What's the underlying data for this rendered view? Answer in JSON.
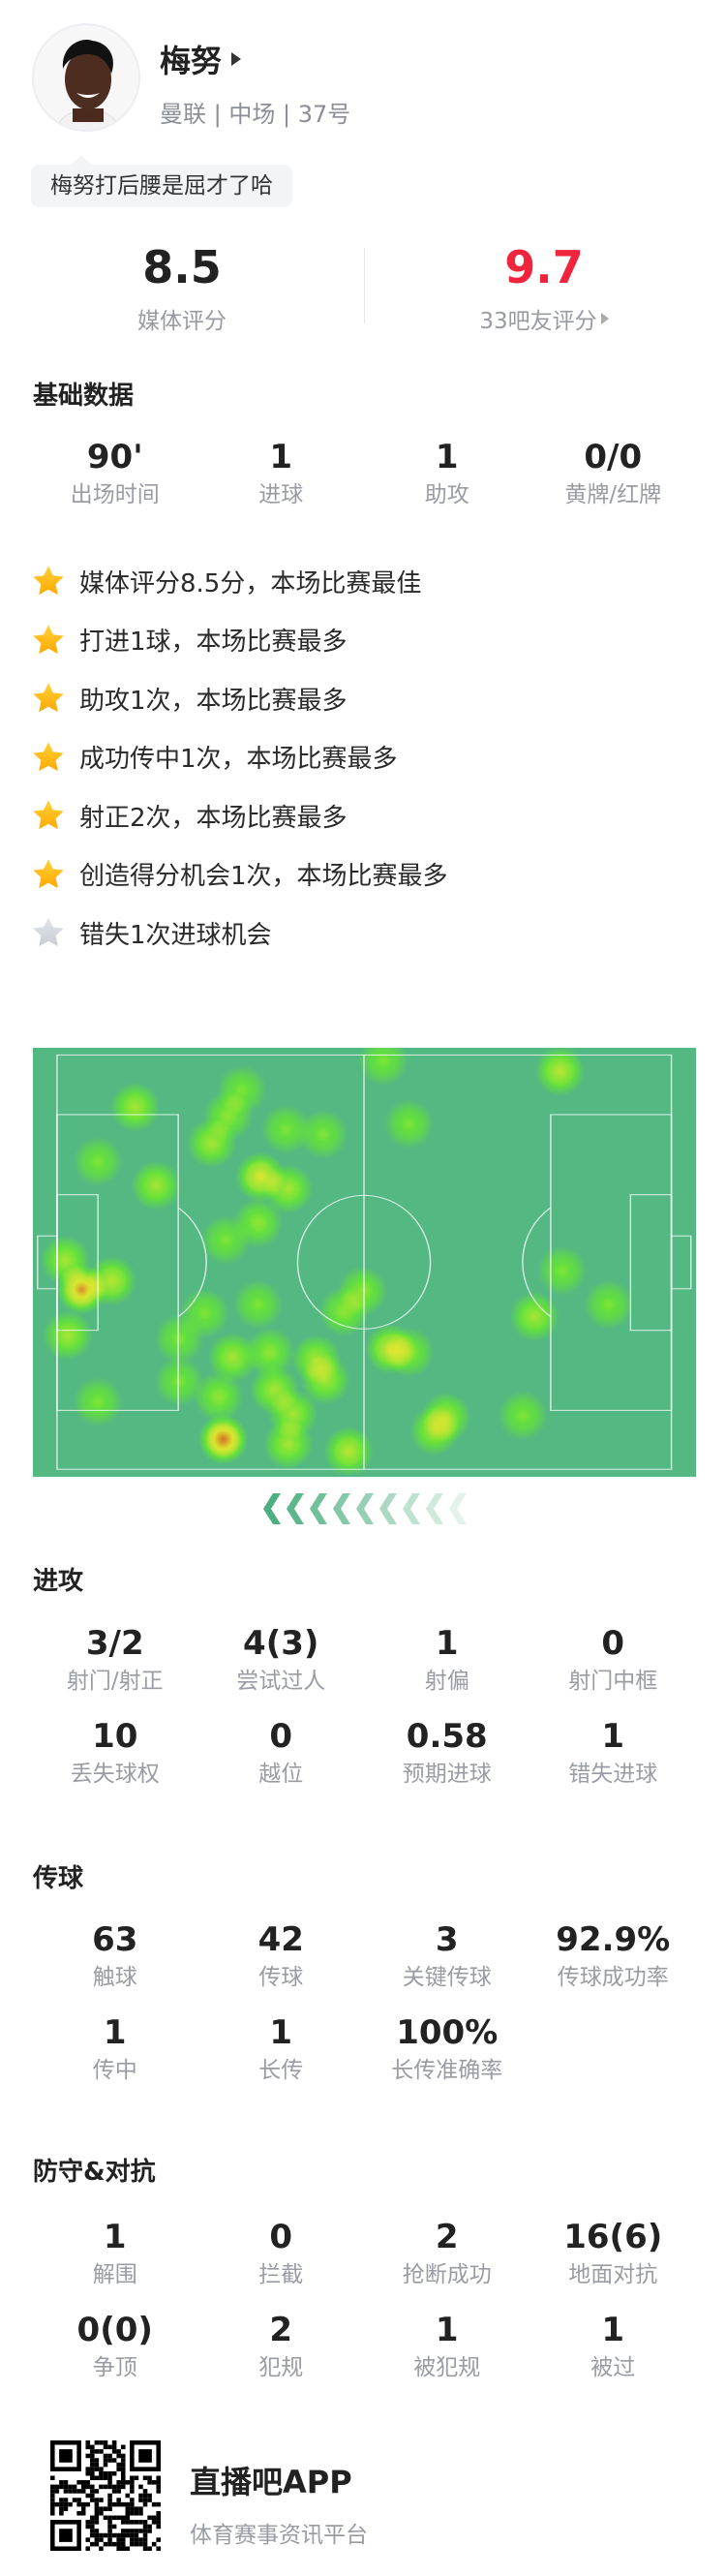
{
  "player": {
    "name": "梅努",
    "team": "曼联",
    "position": "中场",
    "number": "37号",
    "comment": "梅努打后腰是屈才了哈"
  },
  "ratings": {
    "media": {
      "value": "8.5",
      "label": "媒体评分"
    },
    "fans": {
      "value": "9.7",
      "label": "33吧友评分",
      "color": "#f0243c"
    }
  },
  "basic": {
    "title": "基础数据",
    "items": [
      {
        "v": "90'",
        "l": "出场时间"
      },
      {
        "v": "1",
        "l": "进球"
      },
      {
        "v": "1",
        "l": "助攻"
      },
      {
        "v": "0/0",
        "l": "黄牌/红牌"
      }
    ]
  },
  "highlights": [
    {
      "text": "媒体评分8.5分，本场比赛最佳",
      "star": "gold"
    },
    {
      "text": "打进1球，本场比赛最多",
      "star": "gold"
    },
    {
      "text": "助攻1次，本场比赛最多",
      "star": "gold"
    },
    {
      "text": "成功传中1次，本场比赛最多",
      "star": "gold"
    },
    {
      "text": "射正2次，本场比赛最多",
      "star": "gold"
    },
    {
      "text": "创造得分机会1次，本场比赛最多",
      "star": "gold"
    },
    {
      "text": "错失1次进球机会",
      "star": "grey"
    }
  ],
  "heatmap": {
    "attack_direction": "left"
  },
  "attack": {
    "title": "进攻",
    "items": [
      {
        "v": "3/2",
        "l": "射门/射正"
      },
      {
        "v": "4(3)",
        "l": "尝试过人"
      },
      {
        "v": "1",
        "l": "射偏"
      },
      {
        "v": "0",
        "l": "射门中框"
      },
      {
        "v": "10",
        "l": "丢失球权"
      },
      {
        "v": "0",
        "l": "越位"
      },
      {
        "v": "0.58",
        "l": "预期进球"
      },
      {
        "v": "1",
        "l": "错失进球"
      }
    ]
  },
  "passing": {
    "title": "传球",
    "items": [
      {
        "v": "63",
        "l": "触球"
      },
      {
        "v": "42",
        "l": "传球"
      },
      {
        "v": "3",
        "l": "关键传球"
      },
      {
        "v": "92.9%",
        "l": "传球成功率"
      },
      {
        "v": "1",
        "l": "传中"
      },
      {
        "v": "1",
        "l": "长传"
      },
      {
        "v": "100%",
        "l": "长传准确率"
      }
    ]
  },
  "defense": {
    "title": "防守&对抗",
    "items": [
      {
        "v": "1",
        "l": "解围"
      },
      {
        "v": "0",
        "l": "拦截"
      },
      {
        "v": "2",
        "l": "抢断成功"
      },
      {
        "v": "16(6)",
        "l": "地面对抗"
      },
      {
        "v": "0(0)",
        "l": "争顶"
      },
      {
        "v": "2",
        "l": "犯规"
      },
      {
        "v": "1",
        "l": "被犯规"
      },
      {
        "v": "1",
        "l": "被过"
      }
    ]
  },
  "footer": {
    "app": "直播吧APP",
    "slogan": "体育赛事资讯平台"
  }
}
